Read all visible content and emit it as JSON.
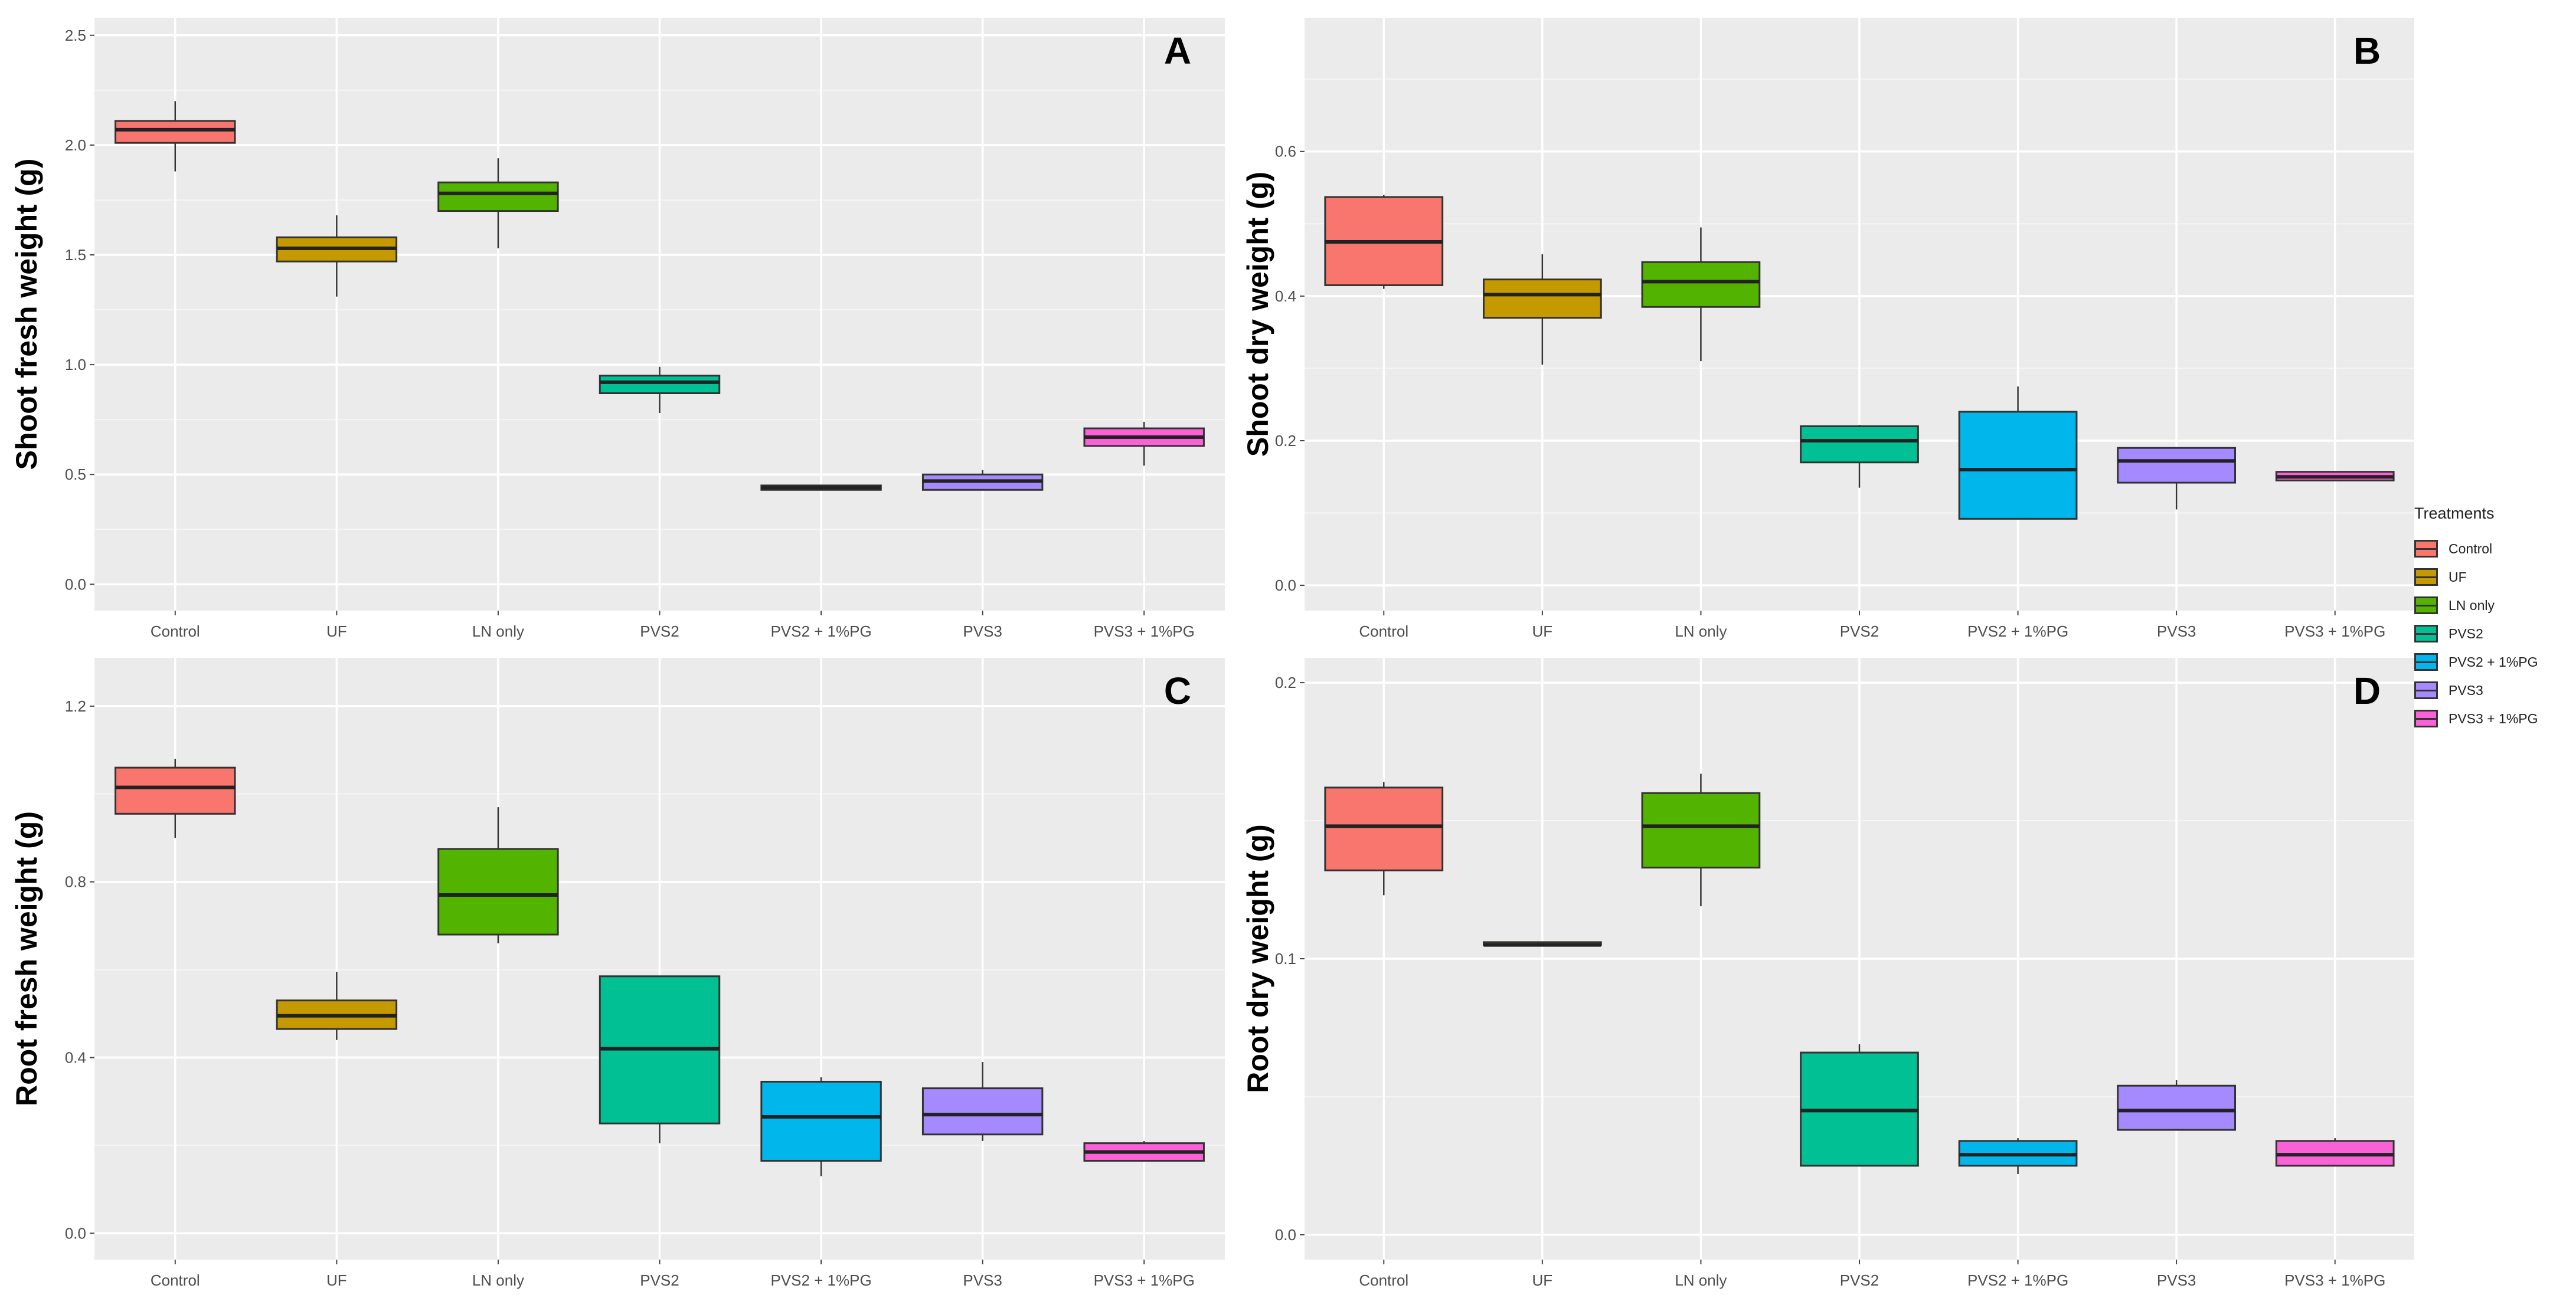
{
  "legend": {
    "title": "Treatments",
    "items": [
      {
        "label": "Control",
        "color": "#F8766D"
      },
      {
        "label": "UF",
        "color": "#C49A00"
      },
      {
        "label": "LN only",
        "color": "#53B400"
      },
      {
        "label": "PVS2",
        "color": "#00C094"
      },
      {
        "label": "PVS2 + 1%PG",
        "color": "#00B6EB"
      },
      {
        "label": "PVS3",
        "color": "#A58AFF"
      },
      {
        "label": "PVS3 + 1%PG",
        "color": "#FB61D7"
      }
    ]
  },
  "chart_data": [
    {
      "type": "box",
      "panel_letter": "A",
      "ylabel": "Shoot fresh weight (g)",
      "categories": [
        "Control",
        "UF",
        "LN only",
        "PVS2",
        "PVS2 + 1%PG",
        "PVS3",
        "PVS3 + 1%PG"
      ],
      "ylim": [
        -0.12,
        2.58
      ],
      "yticks": [
        0.0,
        0.5,
        1.0,
        1.5,
        2.0,
        2.5
      ],
      "tick_labels": [
        "0.0",
        "0.5",
        "1.0",
        "1.5",
        "2.0",
        "2.5"
      ],
      "boxes": [
        {
          "min": 1.88,
          "q1": 2.01,
          "median": 2.07,
          "q3": 2.11,
          "max": 2.2
        },
        {
          "min": 1.31,
          "q1": 1.47,
          "median": 1.53,
          "q3": 1.58,
          "max": 1.68
        },
        {
          "min": 1.53,
          "q1": 1.7,
          "median": 1.78,
          "q3": 1.83,
          "max": 1.94
        },
        {
          "min": 0.78,
          "q1": 0.87,
          "median": 0.92,
          "q3": 0.95,
          "max": 0.99
        },
        {
          "min": 0.43,
          "q1": 0.43,
          "median": 0.44,
          "q3": 0.45,
          "max": 0.45
        },
        {
          "min": 0.43,
          "q1": 0.43,
          "median": 0.47,
          "q3": 0.5,
          "max": 0.52
        },
        {
          "min": 0.54,
          "q1": 0.63,
          "median": 0.67,
          "q3": 0.71,
          "max": 0.74
        }
      ],
      "grid": true
    },
    {
      "type": "box",
      "panel_letter": "B",
      "ylabel": "Shoot dry weight (g)",
      "categories": [
        "Control",
        "UF",
        "LN only",
        "PVS2",
        "PVS2 + 1%PG",
        "PVS3",
        "PVS3 + 1%PG"
      ],
      "ylim": [
        -0.035,
        0.785
      ],
      "yticks": [
        0.0,
        0.2,
        0.4,
        0.6
      ],
      "tick_labels": [
        "0.0",
        "0.2",
        "0.4",
        "0.6"
      ],
      "boxes": [
        {
          "min": 0.41,
          "q1": 0.415,
          "median": 0.475,
          "q3": 0.537,
          "max": 0.54
        },
        {
          "min": 0.305,
          "q1": 0.37,
          "median": 0.402,
          "q3": 0.423,
          "max": 0.458
        },
        {
          "min": 0.31,
          "q1": 0.385,
          "median": 0.42,
          "q3": 0.447,
          "max": 0.495
        },
        {
          "min": 0.135,
          "q1": 0.17,
          "median": 0.2,
          "q3": 0.22,
          "max": 0.222
        },
        {
          "min": 0.092,
          "q1": 0.092,
          "median": 0.16,
          "q3": 0.24,
          "max": 0.275
        },
        {
          "min": 0.105,
          "q1": 0.142,
          "median": 0.172,
          "q3": 0.19,
          "max": 0.19
        },
        {
          "min": 0.145,
          "q1": 0.145,
          "median": 0.15,
          "q3": 0.157,
          "max": 0.158
        }
      ],
      "grid": true
    },
    {
      "type": "box",
      "panel_letter": "C",
      "ylabel": "Root fresh weight (g)",
      "categories": [
        "Control",
        "UF",
        "LN only",
        "PVS2",
        "PVS2 + 1%PG",
        "PVS3",
        "PVS3 + 1%PG"
      ],
      "ylim": [
        -0.06,
        1.31
      ],
      "yticks": [
        0.0,
        0.4,
        0.8,
        1.2
      ],
      "tick_labels": [
        "0.0",
        "0.4",
        "0.8",
        "1.2"
      ],
      "boxes": [
        {
          "min": 0.9,
          "q1": 0.955,
          "median": 1.015,
          "q3": 1.06,
          "max": 1.08
        },
        {
          "min": 0.44,
          "q1": 0.465,
          "median": 0.495,
          "q3": 0.53,
          "max": 0.595
        },
        {
          "min": 0.66,
          "q1": 0.68,
          "median": 0.77,
          "q3": 0.875,
          "max": 0.97
        },
        {
          "min": 0.205,
          "q1": 0.25,
          "median": 0.42,
          "q3": 0.585,
          "max": 0.585
        },
        {
          "min": 0.13,
          "q1": 0.165,
          "median": 0.265,
          "q3": 0.345,
          "max": 0.355
        },
        {
          "min": 0.21,
          "q1": 0.225,
          "median": 0.27,
          "q3": 0.33,
          "max": 0.39
        },
        {
          "min": 0.165,
          "q1": 0.165,
          "median": 0.185,
          "q3": 0.205,
          "max": 0.21
        }
      ],
      "grid": true
    },
    {
      "type": "box",
      "panel_letter": "D",
      "ylabel": "Root dry weight (g)",
      "categories": [
        "Control",
        "UF",
        "LN only",
        "PVS2",
        "PVS2 + 1%PG",
        "PVS3",
        "PVS3 + 1%PG"
      ],
      "ylim": [
        -0.009,
        0.209
      ],
      "yticks": [
        0.0,
        0.1,
        0.2
      ],
      "tick_labels": [
        "0.0",
        "0.1",
        "0.2"
      ],
      "boxes": [
        {
          "min": 0.123,
          "q1": 0.132,
          "median": 0.148,
          "q3": 0.162,
          "max": 0.164
        },
        {
          "min": 0.105,
          "q1": 0.105,
          "median": 0.105,
          "q3": 0.106,
          "max": 0.106
        },
        {
          "min": 0.119,
          "q1": 0.133,
          "median": 0.148,
          "q3": 0.16,
          "max": 0.167
        },
        {
          "min": 0.025,
          "q1": 0.025,
          "median": 0.045,
          "q3": 0.066,
          "max": 0.069
        },
        {
          "min": 0.022,
          "q1": 0.025,
          "median": 0.029,
          "q3": 0.034,
          "max": 0.035
        },
        {
          "min": 0.038,
          "q1": 0.038,
          "median": 0.045,
          "q3": 0.054,
          "max": 0.056
        },
        {
          "min": 0.025,
          "q1": 0.025,
          "median": 0.029,
          "q3": 0.034,
          "max": 0.035
        }
      ],
      "grid": true
    }
  ]
}
